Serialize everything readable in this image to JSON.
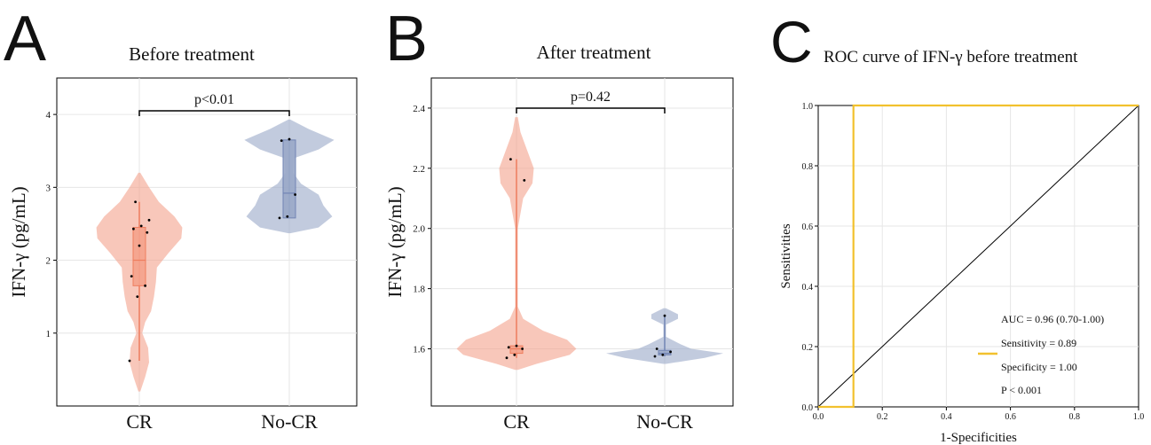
{
  "panels": [
    {
      "letter": "A",
      "title": "Before treatment"
    },
    {
      "letter": "B",
      "title": "After treatment"
    },
    {
      "letter": "C",
      "title": "ROC curve of IFN-γ before treatment"
    }
  ],
  "chart_data": [
    {
      "type": "violin",
      "title": "Before treatment",
      "ylabel": "IFN-γ (pg/mL)",
      "xlabel": "",
      "categories": [
        "CR",
        "No-CR"
      ],
      "ylim": [
        0,
        4.5
      ],
      "yticks": [
        1,
        2,
        3,
        4
      ],
      "grid": true,
      "significance": {
        "label": "p<0.01",
        "y": 4.05
      },
      "groups": [
        {
          "name": "CR",
          "color": "#f4a28c",
          "points": [
            0.62,
            1.5,
            1.65,
            1.78,
            2.2,
            2.38,
            2.43,
            2.47,
            2.55,
            2.8
          ],
          "box": {
            "q1": 1.65,
            "median": 2.0,
            "q3": 2.45,
            "whisker_low": 0.62,
            "whisker_high": 2.8
          },
          "violin": {
            "y": [
              0.2,
              0.4,
              0.6,
              0.8,
              1.0,
              1.15,
              1.3,
              1.5,
              1.7,
              1.9,
              2.1,
              2.3,
              2.45,
              2.6,
              2.8,
              3.0,
              3.2
            ],
            "w": [
              0.01,
              0.06,
              0.1,
              0.09,
              0.03,
              0.06,
              0.12,
              0.15,
              0.17,
              0.18,
              0.3,
              0.43,
              0.44,
              0.36,
              0.2,
              0.1,
              0.01
            ]
          }
        },
        {
          "name": "No-CR",
          "color": "#9aa8c8",
          "points": [
            2.58,
            2.6,
            2.9,
            3.64,
            3.66
          ],
          "box": {
            "q1": 2.58,
            "median": 2.92,
            "q3": 3.65,
            "whisker_low": 2.58,
            "whisker_high": 3.65
          },
          "violin": {
            "y": [
              2.37,
              2.45,
              2.6,
              2.75,
              2.9,
              3.05,
              3.2,
              3.4,
              3.52,
              3.65,
              3.8,
              3.93
            ],
            "w": [
              0.01,
              0.3,
              0.44,
              0.35,
              0.3,
              0.12,
              0.04,
              0.05,
              0.3,
              0.46,
              0.2,
              0.01
            ]
          }
        }
      ]
    },
    {
      "type": "violin",
      "title": "After treatment",
      "ylabel": "IFN-γ (pg/mL)",
      "xlabel": "",
      "categories": [
        "CR",
        "No-CR"
      ],
      "ylim": [
        1.41,
        2.5
      ],
      "yticks": [
        1.6,
        1.8,
        2.0,
        2.2,
        2.4
      ],
      "grid": true,
      "significance": {
        "label": "p=0.42",
        "y": 2.4
      },
      "groups": [
        {
          "name": "CR",
          "color": "#f4a28c",
          "points": [
            1.57,
            1.58,
            1.6,
            1.605,
            1.61,
            2.16,
            2.23
          ],
          "box": {
            "q1": 1.585,
            "median": 1.6,
            "q3": 1.61,
            "whisker_low": 1.57,
            "whisker_high": 2.23
          },
          "violin": {
            "y": [
              1.53,
              1.55,
              1.58,
              1.6,
              1.63,
              1.66,
              1.7,
              1.74,
              1.85,
              2.0,
              2.1,
              2.15,
              2.2,
              2.26,
              2.32,
              2.37
            ],
            "w": [
              0.01,
              0.15,
              0.4,
              0.45,
              0.38,
              0.2,
              0.05,
              0.01,
              0.01,
              0.01,
              0.05,
              0.12,
              0.13,
              0.08,
              0.03,
              0.01
            ]
          }
        },
        {
          "name": "No-CR",
          "color": "#9aa8c8",
          "points": [
            1.575,
            1.58,
            1.59,
            1.6,
            1.71
          ],
          "box": {
            "q1": 1.58,
            "median": 1.585,
            "q3": 1.595,
            "whisker_low": 1.575,
            "whisker_high": 1.71
          },
          "violin": {
            "y": [
              1.55,
              1.57,
              1.585,
              1.6,
              1.615,
              1.64,
              1.68,
              1.7,
              1.715,
              1.735
            ],
            "w": [
              0.01,
              0.3,
              0.44,
              0.2,
              0.12,
              0.01,
              0.01,
              0.1,
              0.1,
              0.01
            ]
          }
        }
      ]
    },
    {
      "type": "line",
      "title": "ROC curve of IFN-γ before treatment",
      "xlabel": "1-Specificities",
      "ylabel": "Sensitivities",
      "xlim": [
        0,
        1
      ],
      "ylim": [
        0,
        1
      ],
      "xticks": [
        0.0,
        0.2,
        0.4,
        0.6,
        0.8,
        1.0
      ],
      "yticks": [
        0.0,
        0.2,
        0.4,
        0.6,
        0.8,
        1.0
      ],
      "grid": true,
      "series": [
        {
          "color": "#f2c12e",
          "x": [
            0,
            0.11,
            0.11,
            0.11,
            1.0
          ],
          "y": [
            0,
            0,
            0.89,
            1.0,
            1.0
          ]
        }
      ],
      "reference_line": {
        "x": [
          0,
          1
        ],
        "y": [
          0,
          1
        ],
        "color": "#000000"
      },
      "legend": {
        "placement": "bottom-right",
        "lines": [
          "AUC = 0.96 (0.70-1.00)",
          "Sensitivity = 0.89",
          "Specificity = 1.00",
          "P < 0.001"
        ]
      }
    }
  ]
}
